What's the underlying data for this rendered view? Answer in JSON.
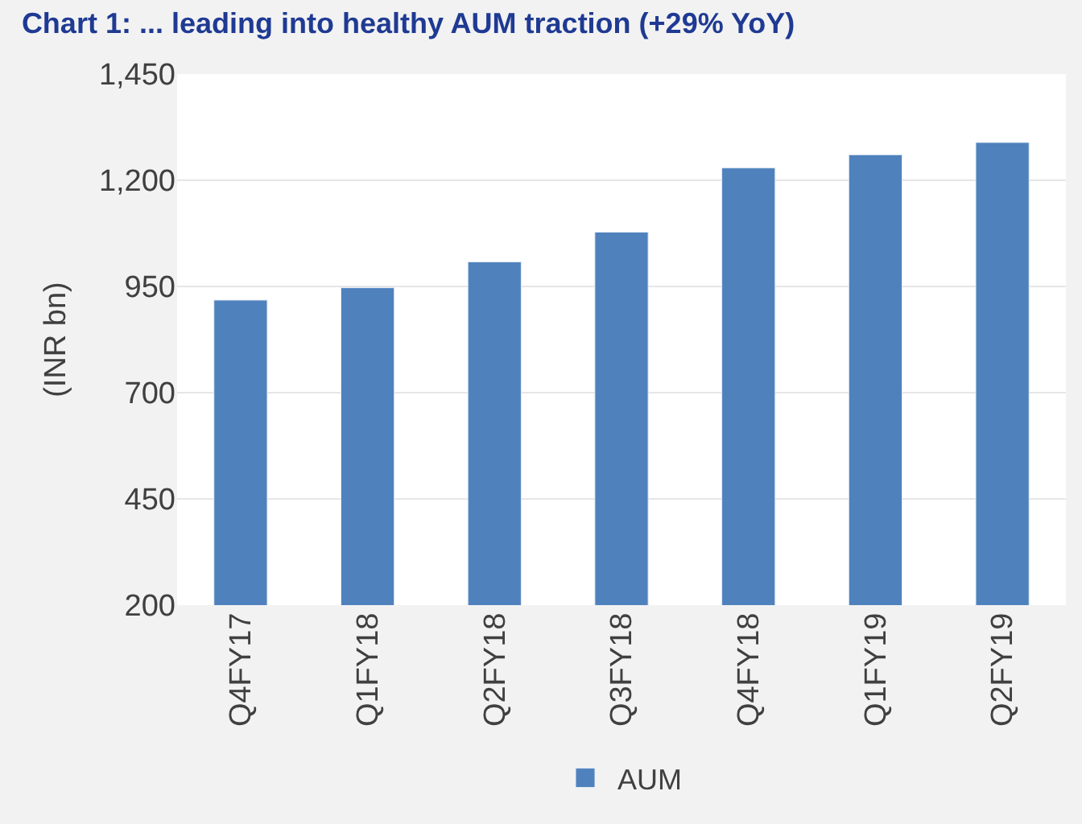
{
  "chart_data": {
    "type": "bar",
    "title": "Chart 1: ... leading into healthy AUM traction (+29% YoY)",
    "ylabel": "(INR bn)",
    "categories": [
      "Q4FY17",
      "Q1FY18",
      "Q2FY18",
      "Q3FY18",
      "Q4FY18",
      "Q1FY19",
      "Q2FY19"
    ],
    "series": [
      {
        "name": "AUM",
        "color": "#4f81bd",
        "values": [
          918,
          947,
          1008,
          1078,
          1229,
          1260,
          1289
        ]
      }
    ],
    "ylim": [
      200,
      1450
    ],
    "yticks": [
      {
        "value": 200,
        "label": "200"
      },
      {
        "value": 450,
        "label": "450"
      },
      {
        "value": 700,
        "label": "700"
      },
      {
        "value": 950,
        "label": "950"
      },
      {
        "value": 1200,
        "label": "1,200"
      },
      {
        "value": 1450,
        "label": "1,450"
      }
    ],
    "grid": "y",
    "legend": "bottom"
  }
}
